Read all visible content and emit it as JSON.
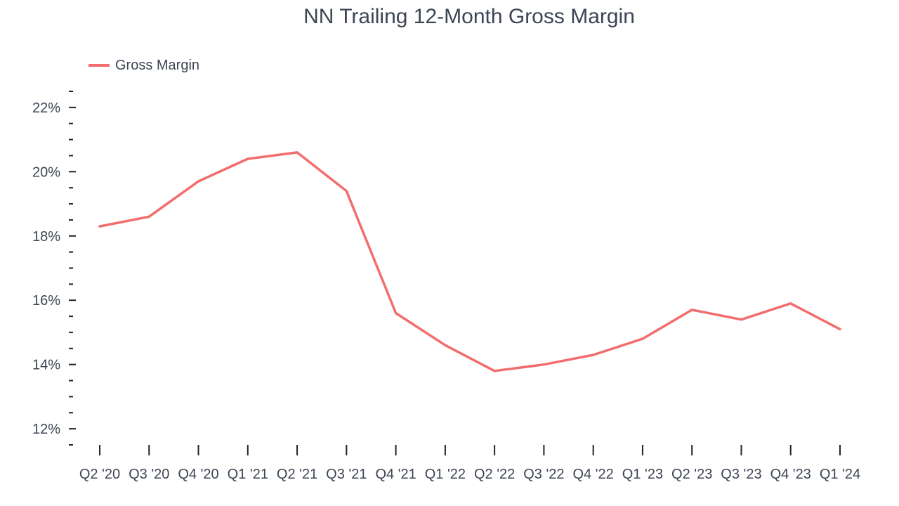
{
  "chart_data": {
    "type": "line",
    "title": "NN Trailing 12-Month Gross Margin",
    "xlabel": "",
    "ylabel": "",
    "categories": [
      "Q2 '20",
      "Q3 '20",
      "Q4 '20",
      "Q1 '21",
      "Q2 '21",
      "Q3 '21",
      "Q4 '21",
      "Q1 '22",
      "Q2 '22",
      "Q3 '22",
      "Q4 '22",
      "Q1 '23",
      "Q2 '23",
      "Q3 '23",
      "Q4 '23",
      "Q1 '24"
    ],
    "series": [
      {
        "name": "Gross Margin",
        "color": "#f26d6d",
        "values": [
          18.3,
          18.6,
          19.7,
          20.4,
          20.6,
          19.4,
          15.6,
          14.6,
          13.8,
          14.0,
          14.3,
          14.8,
          15.7,
          15.4,
          15.9,
          15.1
        ]
      }
    ],
    "yticks": [
      12,
      14,
      16,
      18,
      20,
      22
    ],
    "ytick_labels": [
      "12%",
      "14%",
      "16%",
      "18%",
      "20%",
      "22%"
    ],
    "ylim": [
      11.5,
      22.5
    ],
    "grid": false,
    "legend_position": "top-left",
    "colors": {
      "text": "#3d4553",
      "axis": "#222222"
    }
  }
}
